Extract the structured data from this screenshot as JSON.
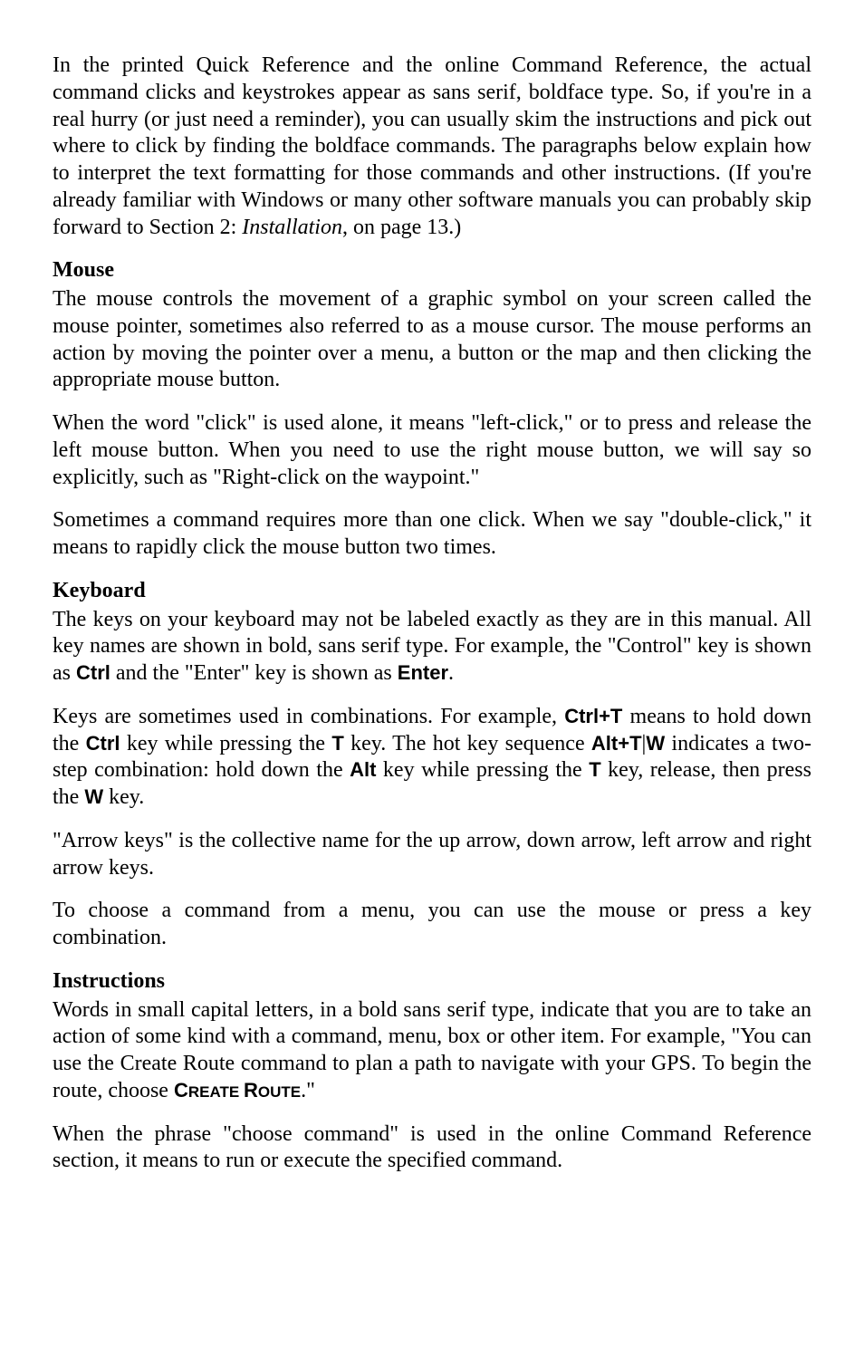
{
  "p1_a": "In the printed Quick Reference and the online Command Reference, the actual command clicks and keystrokes appear as sans serif, boldface type. So, if you're in a real hurry (or just need a reminder), you can usually skim the instructions and pick out where to click by finding the boldface commands. The paragraphs below explain how to interpret the text formatting for those commands and other instructions. (If you're already familiar with Windows or many other software manuals you can probably skip forward to Section 2: ",
  "p1_i": "Installation",
  "p1_b": ", on page 13.)",
  "h_mouse": "Mouse",
  "p_mouse1": "The mouse controls the movement of a graphic symbol on your screen called the mouse pointer, sometimes also referred to as a mouse cursor. The mouse performs an action by moving the pointer over a menu, a button or the map and then clicking the appropriate mouse button.",
  "p_mouse2": "When the word \"click\" is used alone, it means \"left-click,\" or to press and release the left mouse button. When you need to use the right mouse button, we will say so explicitly, such as \"Right-click on the waypoint.\"",
  "p_mouse3": "Sometimes a command requires more than one click. When we say \"double-click,\" it means to rapidly click the mouse button two times.",
  "h_keyboard": "Keyboard",
  "p_kb1_a": "The keys on your keyboard may not be labeled exactly as they are in this manual. All key names are shown in bold, sans serif type. For example, the \"Control\" key is shown as ",
  "p_kb1_ctrl": "Ctrl",
  "p_kb1_b": " and the \"Enter\" key is shown as ",
  "p_kb1_enter": "Enter",
  "p_kb1_c": ".",
  "p_kb2_a": "Keys are sometimes used in combinations. For example, ",
  "p_kb2_ctrlT": "Ctrl+T",
  "p_kb2_b": " means to hold down the ",
  "p_kb2_ctrl": "Ctrl",
  "p_kb2_c": " key while pressing the ",
  "p_kb2_T": "T",
  "p_kb2_d": " key. The hot key sequence ",
  "p_kb2_altT": "Alt+T",
  "p_kb2_pipe": "|",
  "p_kb2_W": "W",
  "p_kb2_e": " indicates a two-step combination: hold down the ",
  "p_kb2_alt": "Alt",
  "p_kb2_f": " key while pressing the ",
  "p_kb2_T2": "T",
  "p_kb2_g": " key, release, then press the ",
  "p_kb2_W2": "W",
  "p_kb2_h": " key.",
  "p_kb3": "\"Arrow keys\" is the collective name for the up arrow, down arrow, left arrow and right arrow keys.",
  "p_kb4": "To choose a command from a menu, you can use the mouse or press a key combination.",
  "h_instr": "Instructions",
  "p_in1_a": "Words in small capital letters, in a bold sans serif type, indicate that you are to take an action of some kind with a command, menu, box or other item. For example, \"You can use the Create Route command to plan a path to navigate with your GPS. To begin the route, choose ",
  "p_in1_C": "C",
  "p_in1_reate": "REATE",
  "p_in1_sp": " ",
  "p_in1_R": "R",
  "p_in1_oute": "OUTE",
  "p_in1_b": ".\"",
  "p_in2": "When the phrase \"choose command\" is used in the online Command Reference section, it means to run or execute the specified command."
}
